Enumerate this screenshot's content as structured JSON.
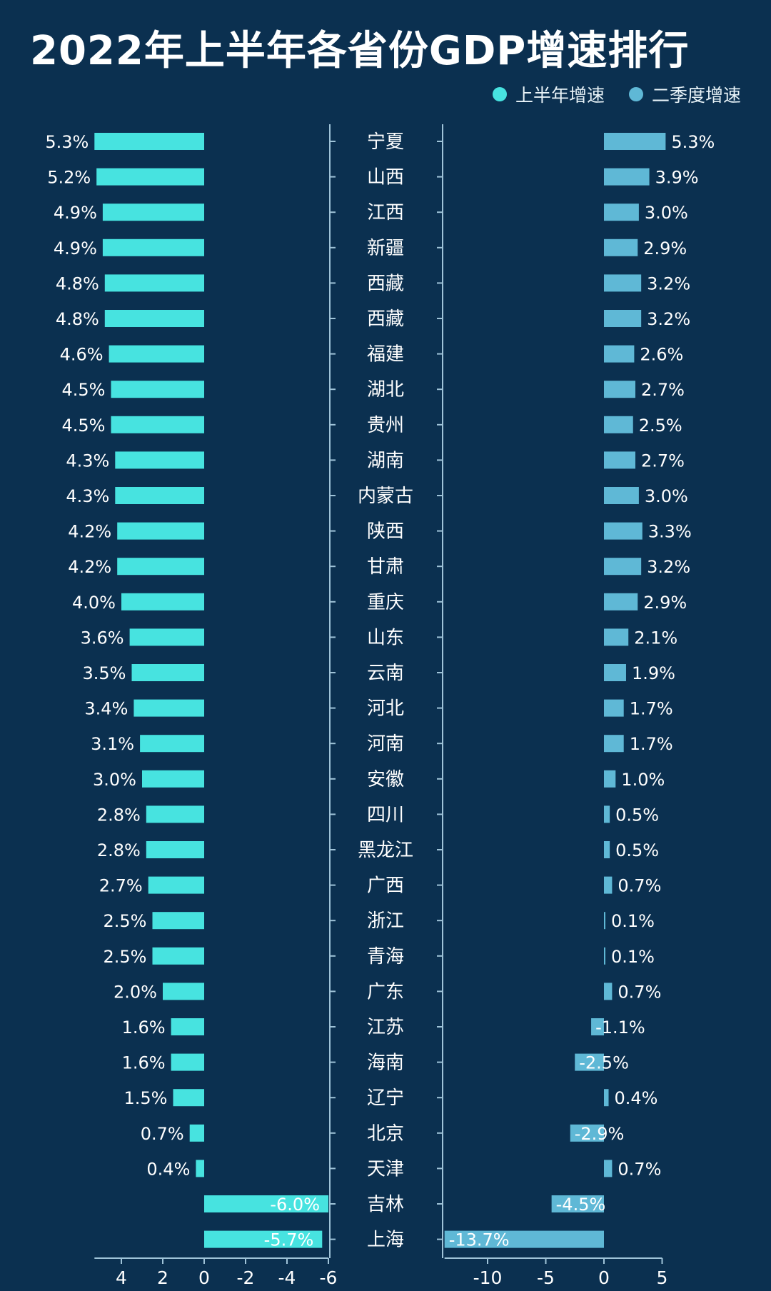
{
  "title": "2022年上半年各省份GDP增速排行",
  "colors": {
    "background": "#0b3050",
    "h1": "#47e3e0",
    "q2": "#5fb8d6",
    "axis": "#9fc3d8"
  },
  "chart_data": {
    "type": "bar",
    "orientation": "horizontal",
    "title": "2022年上半年各省份GDP增速排行",
    "categories": [
      "宁夏",
      "山西",
      "江西",
      "新疆",
      "西藏",
      "西藏",
      "福建",
      "湖北",
      "贵州",
      "湖南",
      "内蒙古",
      "陕西",
      "甘肃",
      "重庆",
      "山东",
      "云南",
      "河北",
      "河南",
      "安徽",
      "四川",
      "黑龙江",
      "广西",
      "浙江",
      "青海",
      "广东",
      "江苏",
      "海南",
      "辽宁",
      "北京",
      "天津",
      "吉林",
      "上海"
    ],
    "series": [
      {
        "name": "上半年增速",
        "values": [
          5.3,
          5.2,
          4.9,
          4.9,
          4.8,
          4.8,
          4.6,
          4.5,
          4.5,
          4.3,
          4.3,
          4.2,
          4.2,
          4.0,
          3.6,
          3.5,
          3.4,
          3.1,
          3.0,
          2.8,
          2.8,
          2.7,
          2.5,
          2.5,
          2.0,
          1.6,
          1.6,
          1.5,
          0.7,
          0.4,
          -6.0,
          -5.7
        ],
        "labels": [
          "5.3%",
          "5.2%",
          "4.9%",
          "4.9%",
          "4.8%",
          "4.8%",
          "4.6%",
          "4.5%",
          "4.5%",
          "4.3%",
          "4.3%",
          "4.2%",
          "4.2%",
          "4.0%",
          "3.6%",
          "3.5%",
          "3.4%",
          "3.1%",
          "3.0%",
          "2.8%",
          "2.8%",
          "2.7%",
          "2.5%",
          "2.5%",
          "2.0%",
          "1.6%",
          "1.6%",
          "1.5%",
          "0.7%",
          "0.4%",
          "-6.0%",
          "-5.7%"
        ],
        "xlim": [
          5.3,
          -6
        ],
        "ticks": [
          4,
          2,
          0,
          -2,
          -4,
          -6
        ],
        "tick_labels": [
          "4",
          "2",
          "0",
          "-2",
          "-4",
          "-6"
        ]
      },
      {
        "name": "二季度增速",
        "values": [
          5.3,
          3.9,
          3.0,
          2.9,
          3.2,
          3.2,
          2.6,
          2.7,
          2.5,
          2.7,
          3.0,
          3.3,
          3.2,
          2.9,
          2.1,
          1.9,
          1.7,
          1.7,
          1.0,
          0.5,
          0.5,
          0.7,
          0.1,
          0.1,
          0.7,
          -1.1,
          -2.5,
          0.4,
          -2.9,
          0.7,
          -4.5,
          -13.7
        ],
        "labels": [
          "5.3%",
          "3.9%",
          "3.0%",
          "2.9%",
          "3.2%",
          "3.2%",
          "2.6%",
          "2.7%",
          "2.5%",
          "2.7%",
          "3.0%",
          "3.3%",
          "3.2%",
          "2.9%",
          "2.1%",
          "1.9%",
          "1.7%",
          "1.7%",
          "1.0%",
          "0.5%",
          "0.5%",
          "0.7%",
          "0.1%",
          "0.1%",
          "0.7%",
          "-1.1%",
          "-2.5%",
          "0.4%",
          "-2.9%",
          "0.7%",
          "-4.5%",
          "-13.7%"
        ],
        "xlim": [
          -13.7,
          5
        ],
        "ticks": [
          -10,
          -5,
          0,
          5
        ],
        "tick_labels": [
          "-10",
          "-5",
          "0",
          "5"
        ]
      }
    ],
    "legend": "top-right",
    "grid": false
  }
}
